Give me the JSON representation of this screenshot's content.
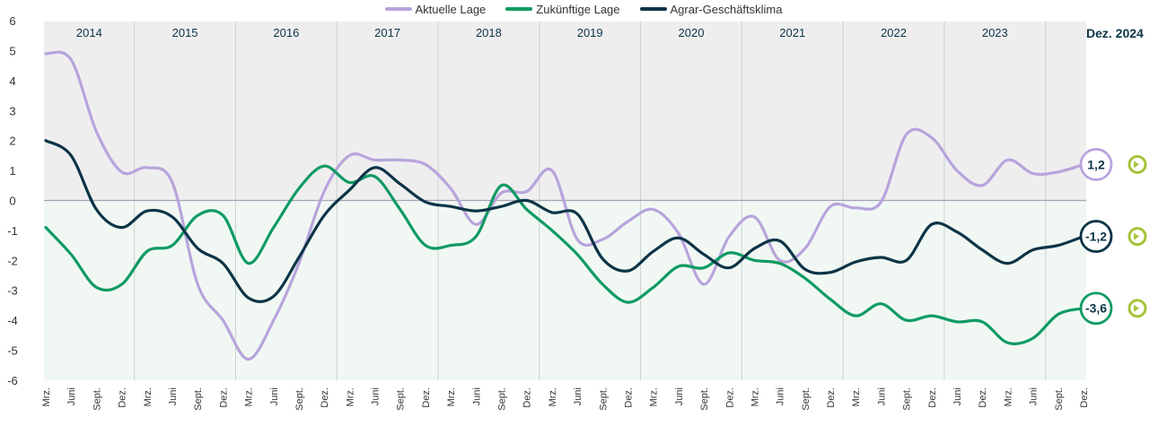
{
  "chart_data": {
    "type": "line",
    "title": "",
    "xlabel": "",
    "ylabel": "",
    "ylim": [
      -6,
      6
    ],
    "yticks": [
      6,
      5,
      4,
      3,
      2,
      1,
      0,
      -1,
      -2,
      -3,
      -4,
      -5,
      -6
    ],
    "grid": false,
    "legend": "top-center",
    "as_of_label": "Dez. 2024",
    "years": [
      "2014",
      "2015",
      "2016",
      "2017",
      "2018",
      "2019",
      "2020",
      "2021",
      "2022",
      "2023"
    ],
    "quarter_labels": [
      "Mrz.",
      "Juni",
      "Sept.",
      "Dez."
    ],
    "x": [
      "Mrz. 2014",
      "Juni 2014",
      "Sept. 2014",
      "Dez. 2014",
      "Mrz. 2015",
      "Juni 2015",
      "Sept. 2015",
      "Dez. 2015",
      "Mrz. 2016",
      "Juni 2016",
      "Sept. 2016",
      "Dez. 2016",
      "Mrz. 2017",
      "Juni 2017",
      "Sept. 2017",
      "Dez. 2017",
      "Mrz. 2018",
      "Juni 2018",
      "Sept. 2018",
      "Dez. 2018",
      "Mrz. 2019",
      "Juni 2019",
      "Sept. 2019",
      "Dez. 2019",
      "Mrz. 2020",
      "Juni 2020",
      "Sept. 2020",
      "Dez. 2020",
      "Mrz. 2021",
      "Juni 2021",
      "Sept. 2021",
      "Dez. 2021",
      "Mrz. 2022",
      "Juni 2022",
      "Sept. 2022",
      "Dez. 2022",
      "Juni 2023",
      "Dez. 2023",
      "Mrz. 2024",
      "Juni 2024",
      "Sept. 2024",
      "Dez. 2024"
    ],
    "series": [
      {
        "name": "Aktuelle Lage",
        "color": "#b7a4dc",
        "values": [
          4.9,
          4.7,
          2.3,
          0.95,
          1.1,
          0.6,
          -2.8,
          -4.0,
          -5.3,
          -4.0,
          -2.1,
          0.3,
          1.5,
          1.35,
          1.35,
          1.2,
          0.4,
          -0.8,
          0.25,
          0.3,
          1.0,
          -1.3,
          -1.3,
          -0.7,
          -0.3,
          -1.1,
          -2.8,
          -1.2,
          -0.55,
          -2.0,
          -1.6,
          -0.2,
          -0.25,
          -0.05,
          2.2,
          2.1,
          1.0,
          0.5,
          1.35,
          0.9,
          0.95,
          1.2
        ]
      },
      {
        "name": "Zukünftige Lage",
        "color": "#0f9b63",
        "values": [
          -0.9,
          -1.8,
          -2.9,
          -2.8,
          -1.7,
          -1.5,
          -0.5,
          -0.5,
          -2.1,
          -0.9,
          0.4,
          1.15,
          0.6,
          0.8,
          -0.3,
          -1.5,
          -1.5,
          -1.2,
          0.5,
          -0.3,
          -1.0,
          -1.8,
          -2.8,
          -3.4,
          -2.9,
          -2.2,
          -2.25,
          -1.75,
          -2.0,
          -2.1,
          -2.6,
          -3.3,
          -3.85,
          -3.45,
          -4.0,
          -3.85,
          -4.05,
          -4.05,
          -4.75,
          -4.6,
          -3.8,
          -3.6
        ]
      },
      {
        "name": "Agrar-Geschäftsklima",
        "color": "#0c3447",
        "values": [
          2.0,
          1.5,
          -0.3,
          -0.9,
          -0.35,
          -0.55,
          -1.6,
          -2.1,
          -3.25,
          -3.2,
          -1.9,
          -0.5,
          0.35,
          1.1,
          0.55,
          -0.05,
          -0.2,
          -0.35,
          -0.2,
          0.0,
          -0.4,
          -0.45,
          -1.95,
          -2.35,
          -1.7,
          -1.25,
          -1.8,
          -2.25,
          -1.6,
          -1.35,
          -2.3,
          -2.4,
          -2.05,
          -1.9,
          -2.0,
          -0.8,
          -1.05,
          -1.65,
          -2.1,
          -1.65,
          -1.5,
          -1.2
        ]
      }
    ],
    "end_labels": [
      "1,2",
      "-3,6",
      "-1,2"
    ]
  }
}
